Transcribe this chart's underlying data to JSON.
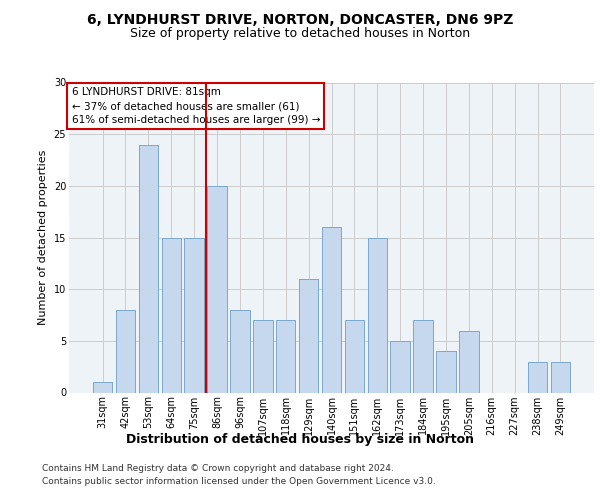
{
  "title1": "6, LYNDHURST DRIVE, NORTON, DONCASTER, DN6 9PZ",
  "title2": "Size of property relative to detached houses in Norton",
  "xlabel": "Distribution of detached houses by size in Norton",
  "ylabel": "Number of detached properties",
  "categories": [
    "31sqm",
    "42sqm",
    "53sqm",
    "64sqm",
    "75sqm",
    "86sqm",
    "96sqm",
    "107sqm",
    "118sqm",
    "129sqm",
    "140sqm",
    "151sqm",
    "162sqm",
    "173sqm",
    "184sqm",
    "195sqm",
    "205sqm",
    "216sqm",
    "227sqm",
    "238sqm",
    "249sqm"
  ],
  "values": [
    1,
    8,
    24,
    15,
    15,
    20,
    8,
    7,
    7,
    11,
    16,
    7,
    15,
    5,
    7,
    4,
    6,
    0,
    0,
    3,
    3
  ],
  "bar_color": "#c5d8ed",
  "bar_edge_color": "#7aa8cc",
  "vline_index": 4.5,
  "vline_color": "#cc0000",
  "annotation_text": "6 LYNDHURST DRIVE: 81sqm\n← 37% of detached houses are smaller (61)\n61% of semi-detached houses are larger (99) →",
  "annotation_box_color": "#cc0000",
  "ylim": [
    0,
    30
  ],
  "yticks": [
    0,
    5,
    10,
    15,
    20,
    25,
    30
  ],
  "grid_color": "#cccccc",
  "background_color": "#eef3f8",
  "footer1": "Contains HM Land Registry data © Crown copyright and database right 2024.",
  "footer2": "Contains public sector information licensed under the Open Government Licence v3.0.",
  "title1_fontsize": 10,
  "title2_fontsize": 9,
  "ylabel_fontsize": 8,
  "xlabel_fontsize": 9,
  "tick_fontsize": 7,
  "annotation_fontsize": 7.5,
  "footer_fontsize": 6.5
}
